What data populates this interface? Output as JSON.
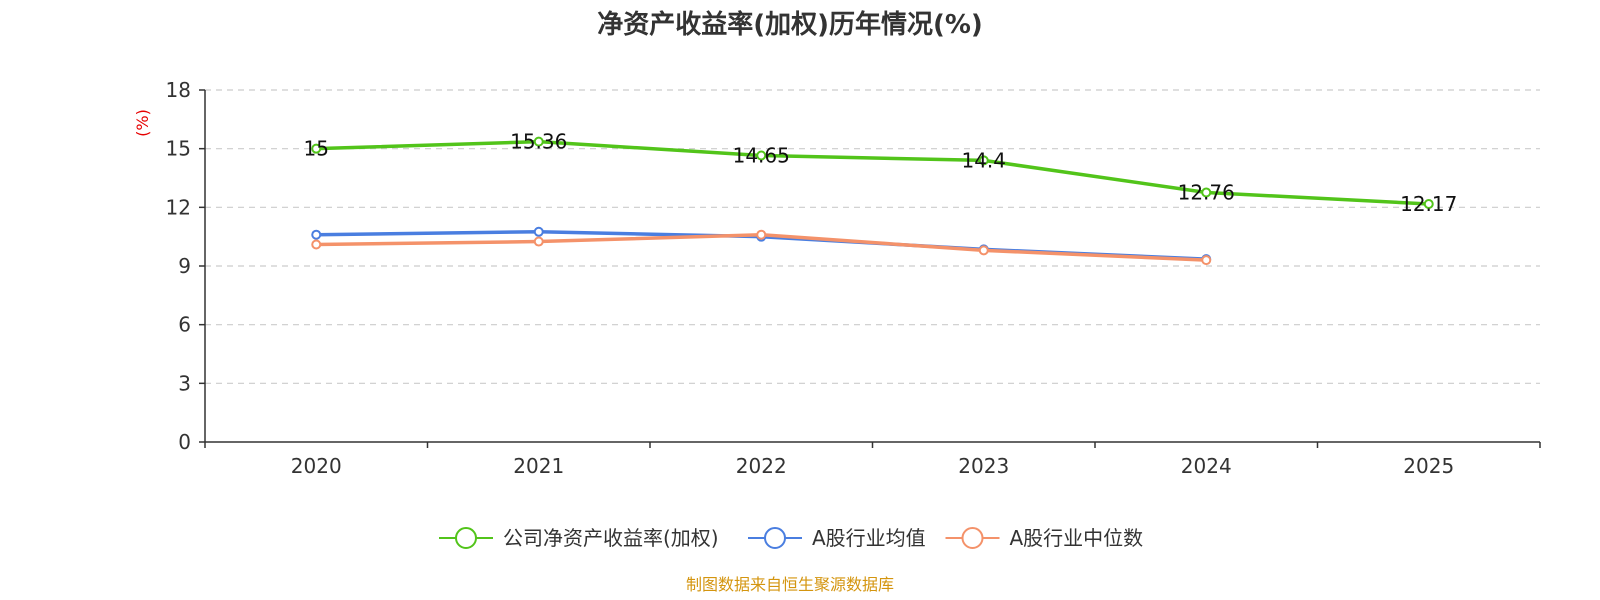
{
  "chart_data": {
    "type": "line",
    "title": "净资产收益率(加权)历年情况(%)",
    "ylabel": "(%)",
    "categories": [
      "2020",
      "2021",
      "2022",
      "2023",
      "2024",
      "2025"
    ],
    "ylim": [
      0,
      18
    ],
    "yticks": [
      0,
      3,
      6,
      9,
      12,
      15,
      18
    ],
    "grid": true,
    "legend_position": "bottom",
    "series": [
      {
        "name": "公司净资产收益率(加权)",
        "color": "#52c41a",
        "values": [
          15,
          15.36,
          14.65,
          14.4,
          12.76,
          12.17
        ],
        "labels": [
          "15",
          "15.36",
          "14.65",
          "14.4",
          "12.76",
          "12.17"
        ]
      },
      {
        "name": "A股行业均值",
        "color": "#4a7ee0",
        "values": [
          10.6,
          10.75,
          10.5,
          9.85,
          9.35,
          null
        ]
      },
      {
        "name": "A股行业中位数",
        "color": "#f4926a",
        "values": [
          10.1,
          10.25,
          10.6,
          9.8,
          9.3,
          null
        ]
      }
    ],
    "ylabel_color": "#e60000"
  },
  "source": {
    "text": "制图数据来自恒生聚源数据库",
    "color": "#d4950f"
  }
}
